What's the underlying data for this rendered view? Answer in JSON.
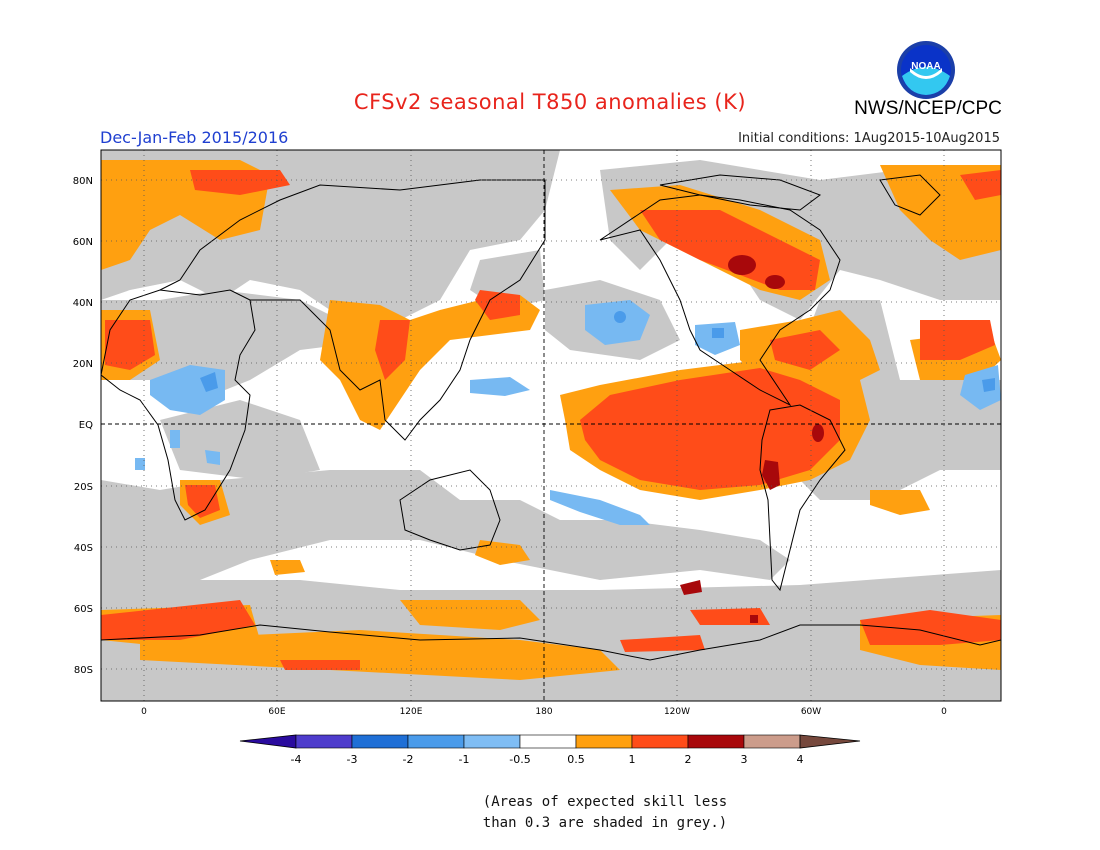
{
  "header": {
    "title": "CFSv2 seasonal T850 anomalies (K)",
    "agency": "NWS/NCEP/CPC",
    "season": "Dec-Jan-Feb 2015/2016",
    "initial_conditions": "Initial conditions: 1Aug2015-10Aug2015",
    "logo_text": "NOAA"
  },
  "map": {
    "projection": "equirectangular",
    "lat_labels": [
      "80N",
      "60N",
      "40N",
      "20N",
      "EQ",
      "20S",
      "40S",
      "60S",
      "80S"
    ],
    "lon_labels": [
      "0",
      "60E",
      "120E",
      "180",
      "120W",
      "60W",
      "0"
    ],
    "grid": "dotted",
    "skill_mask_color": "#c8c8c8",
    "colors": {
      "land_outline": "#000000",
      "ocean_default": "#ffffff"
    },
    "anomaly_regions": [
      {
        "name": "equatorial-pacific",
        "level": "1 to 2",
        "color": "#ff4c19"
      },
      {
        "name": "north-america-northeast",
        "level": "1 to 3",
        "color": "#ff4c19"
      },
      {
        "name": "greenland-sea",
        "level": "1 to 2",
        "color": "#ff4c19"
      },
      {
        "name": "north-pacific-cool",
        "level": "-1 to -0.5",
        "color": "#77b9f2"
      },
      {
        "name": "africa-cool",
        "level": "-1 to -0.5",
        "color": "#77b9f2"
      },
      {
        "name": "southern-ocean",
        "level": "1 to 2",
        "color": "#ff4c19"
      }
    ]
  },
  "colorbar": {
    "labels": [
      "-4",
      "-3",
      "-2",
      "-1",
      "-0.5",
      "0.5",
      "1",
      "2",
      "3",
      "4"
    ],
    "colors": [
      "#2a0b9e",
      "#4e3ccc",
      "#1f6fd6",
      "#4a9bea",
      "#7fbdf4",
      "#ffffff",
      "#ffa010",
      "#ff4c19",
      "#a8080b",
      "#cc9c8b",
      "#76483c"
    ]
  },
  "footnote": {
    "line1": "(Areas of expected skill less",
    "line2": "than 0.3 are shaded in grey.)"
  }
}
